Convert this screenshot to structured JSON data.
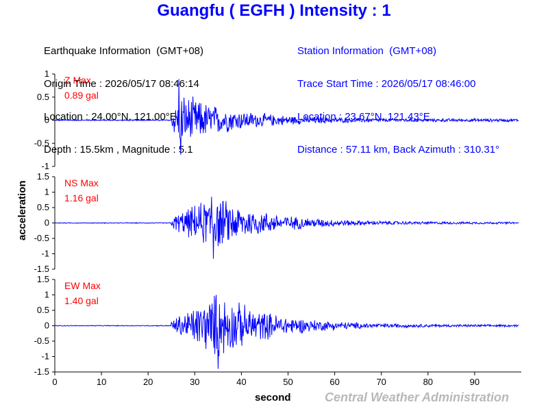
{
  "header": {
    "title": "Guangfu ( EGFH ) Intensity : 1"
  },
  "earthquake_info": {
    "heading": "Earthquake Information  (GMT+08)",
    "origin_time": "Origin Time : 2026/05/17 08:46:14",
    "location": "Location : 24.00°N, 121.00°E",
    "depth_magnitude": "Depth : 15.5km , Magnitude : 5.1"
  },
  "station_info": {
    "heading": "Station Information  (GMT+08)",
    "trace_start": "Trace Start Time : 2026/05/17 08:46:00",
    "location": "Location : 23.67°N, 121.43°E",
    "distance": "Distance : 57.11 km, Back Azimuth : 310.31°"
  },
  "footer": {
    "agency": "Central Weather Administration"
  },
  "colors": {
    "trace": "#0000ff",
    "title": "#0000ff",
    "max_label": "#ff0000",
    "agency": "#b8b8b8"
  },
  "chart_data": {
    "type": "line",
    "xlabel": "second",
    "ylabel": "acceleration",
    "xlim": [
      0,
      100
    ],
    "x_ticks": [
      0,
      10,
      20,
      30,
      40,
      50,
      60,
      70,
      80,
      90
    ],
    "grid": false,
    "panels": [
      {
        "component": "Z",
        "max_label": "Z Max",
        "max_value": "0.89 gal",
        "ylim": [
          -1,
          1
        ],
        "y_ticks": [
          1,
          0.5,
          0,
          -0.5,
          -1
        ],
        "y_tick_labels": [
          "1",
          "0.5",
          "0",
          "-0.5",
          "-1"
        ],
        "signal_onset_s": 25,
        "peak_positive": 0.89,
        "peak_negative": -0.75,
        "peak_time_s": 27
      },
      {
        "component": "NS",
        "max_label": "NS Max",
        "max_value": "1.16 gal",
        "ylim": [
          -1.5,
          1.5
        ],
        "y_ticks": [
          1.5,
          1,
          0.5,
          0,
          -0.5,
          -1,
          -1.5
        ],
        "y_tick_labels": [
          "1.5",
          "1",
          "0.5",
          "0",
          "-0.5",
          "-1",
          "-1.5"
        ],
        "signal_onset_s": 25,
        "peak_positive": 0.85,
        "peak_negative": -1.16,
        "peak_time_s": 34
      },
      {
        "component": "EW",
        "max_label": "EW Max",
        "max_value": "1.40 gal",
        "ylim": [
          -1.5,
          1.5
        ],
        "y_ticks": [
          1.5,
          1,
          0.5,
          0,
          -0.5,
          -1,
          -1.5
        ],
        "y_tick_labels": [
          "1.5",
          "1",
          "0.5",
          "0",
          "-0.5",
          "-1",
          "-1.5"
        ],
        "signal_onset_s": 25,
        "peak_positive": 1.0,
        "peak_negative": -1.4,
        "peak_time_s": 35
      }
    ]
  }
}
